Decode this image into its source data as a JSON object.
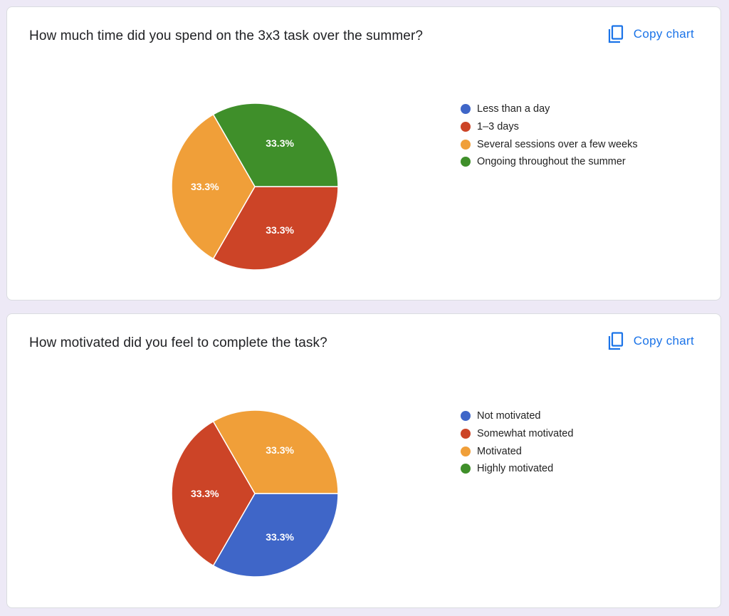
{
  "copy_label": "Copy chart",
  "colors": {
    "blue": "#3f66c8",
    "red": "#cc4427",
    "orange": "#f09f39",
    "green": "#3f8f2a",
    "accent": "#1a73e8"
  },
  "chart_data": [
    {
      "type": "pie",
      "title": "How much time did you spend on the 3x3 task over the summer?",
      "categories": [
        "Less than a day",
        "1–3 days",
        "Several sessions over a few weeks",
        "Ongoing throughout the summer"
      ],
      "values": [
        0,
        33.3,
        33.3,
        33.3
      ],
      "slice_labels": [
        "",
        "33.3%",
        "33.3%",
        "33.3%"
      ],
      "colors": [
        "#3f66c8",
        "#cc4427",
        "#f09f39",
        "#3f8f2a"
      ],
      "legend": "right"
    },
    {
      "type": "pie",
      "title": "How motivated did you feel to complete the task?",
      "categories": [
        "Not motivated",
        "Somewhat motivated",
        "Motivated",
        "Highly motivated"
      ],
      "values": [
        33.3,
        33.3,
        33.3,
        0
      ],
      "slice_labels": [
        "33.3%",
        "33.3%",
        "33.3%",
        ""
      ],
      "colors": [
        "#3f66c8",
        "#cc4427",
        "#f09f39",
        "#3f8f2a"
      ],
      "legend": "right"
    }
  ]
}
